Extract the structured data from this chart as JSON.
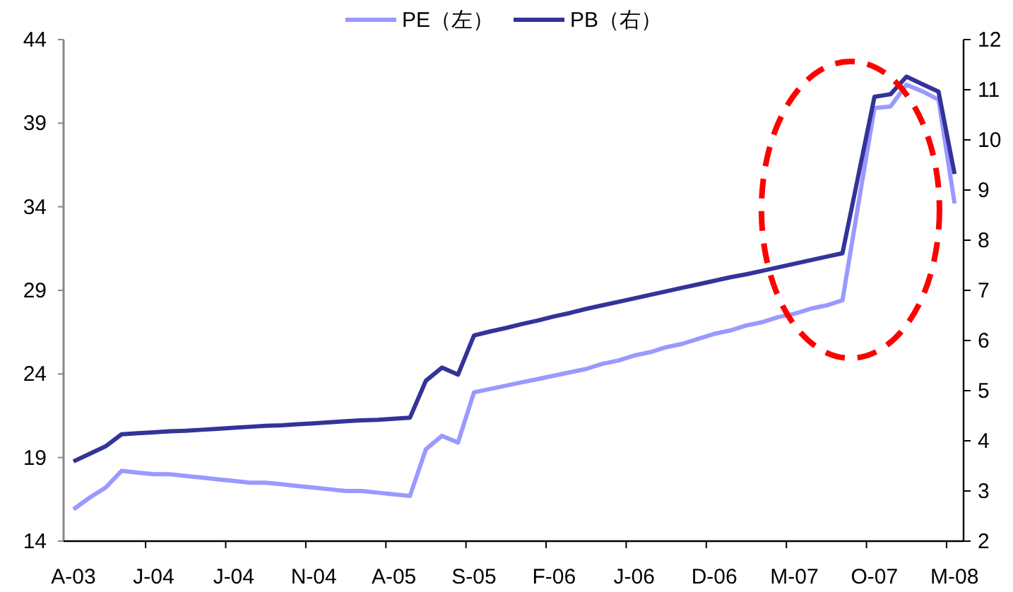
{
  "chart_data": {
    "type": "line",
    "categories": [
      "A-03",
      null,
      null,
      null,
      null,
      "J-04",
      null,
      null,
      null,
      null,
      "J-04",
      null,
      null,
      null,
      null,
      "N-04",
      null,
      null,
      null,
      null,
      "A-05",
      null,
      null,
      null,
      null,
      "S-05",
      null,
      null,
      null,
      null,
      "F-06",
      null,
      null,
      null,
      null,
      "J-06",
      null,
      null,
      null,
      null,
      "D-06",
      null,
      null,
      null,
      null,
      "M-07",
      null,
      null,
      null,
      null,
      "O-07",
      null,
      null,
      null,
      null,
      "M-08"
    ],
    "series": [
      {
        "name": "PE（左）",
        "color": "#9999ff",
        "values": [
          15.9,
          16.6,
          17.2,
          18.2,
          18.1,
          18.0,
          18.0,
          17.9,
          17.8,
          17.7,
          17.6,
          17.5,
          17.5,
          17.4,
          17.3,
          17.2,
          17.1,
          17.0,
          17.0,
          16.9,
          16.8,
          16.7,
          19.5,
          20.3,
          19.9,
          22.9,
          23.1,
          23.3,
          23.5,
          23.7,
          23.9,
          24.1,
          24.3,
          24.6,
          24.8,
          25.1,
          25.3,
          25.6,
          25.8,
          26.1,
          26.4,
          26.6,
          26.9,
          27.1,
          27.4,
          27.6,
          27.9,
          28.1,
          28.4,
          34.2,
          39.9,
          40.0,
          41.3,
          40.9,
          40.4,
          34.2
        ]
      },
      {
        "name": "PB（右）",
        "color": "#333399",
        "axis": "y2",
        "values": [
          3.59,
          3.74,
          3.89,
          4.13,
          4.15,
          4.17,
          4.19,
          4.2,
          4.22,
          4.24,
          4.26,
          4.28,
          4.3,
          4.31,
          4.33,
          4.35,
          4.37,
          4.39,
          4.41,
          4.42,
          4.44,
          4.46,
          5.2,
          5.46,
          5.32,
          6.1,
          6.18,
          6.25,
          6.33,
          6.4,
          6.48,
          6.55,
          6.63,
          6.7,
          6.77,
          6.84,
          6.91,
          6.98,
          7.05,
          7.12,
          7.19,
          7.26,
          7.32,
          7.39,
          7.46,
          7.53,
          7.6,
          7.67,
          7.74,
          9.3,
          10.86,
          10.91,
          11.26,
          11.11,
          10.96,
          9.32
        ]
      }
    ],
    "ylim": [
      14,
      44
    ],
    "yticks": [
      14,
      19,
      24,
      29,
      34,
      39,
      44
    ],
    "y2lim": [
      2,
      12
    ],
    "y2ticks": [
      2,
      3,
      4,
      5,
      6,
      7,
      8,
      9,
      10,
      11,
      12
    ],
    "legend": "top",
    "line_style": "solid"
  }
}
